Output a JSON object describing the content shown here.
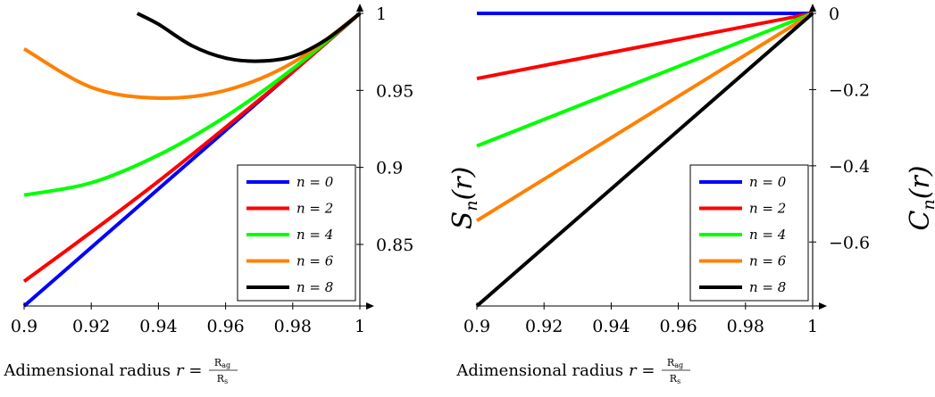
{
  "chart_data": [
    {
      "type": "line",
      "panel": "left",
      "x_ticks": [
        "0.9",
        "0.92",
        "0.94",
        "0.96",
        "0.98",
        "1"
      ],
      "y_ticks": [
        "0.85",
        "0.9",
        "0.95",
        "1"
      ],
      "xlim": [
        0.9,
        1.0
      ],
      "ylim": [
        0.81,
        1.0
      ],
      "y_axis_side": "right",
      "xlabel_text": "Adimensional radius",
      "xlabel_math": "r =",
      "xlabel_frac_num": "R",
      "xlabel_frac_num_sub": "ag",
      "xlabel_frac_den": "R",
      "xlabel_frac_den_sub": "s",
      "legend_position": "bottom-right",
      "series": [
        {
          "name": "n = 0",
          "color": "#0000ff",
          "x": [
            0.9,
            0.92,
            0.94,
            0.96,
            0.98,
            1.0
          ],
          "y": [
            0.81,
            0.848,
            0.886,
            0.924,
            0.962,
            1.0
          ]
        },
        {
          "name": "n = 2",
          "color": "#ff0000",
          "x": [
            0.9,
            0.92,
            0.94,
            0.96,
            0.98,
            1.0
          ],
          "y": [
            0.826,
            0.858,
            0.891,
            0.926,
            0.962,
            1.0
          ]
        },
        {
          "name": "n = 4",
          "color": "#00ff00",
          "x": [
            0.9,
            0.92,
            0.94,
            0.96,
            0.98,
            1.0
          ],
          "y": [
            0.882,
            0.89,
            0.908,
            0.933,
            0.964,
            1.0
          ]
        },
        {
          "name": "n = 6",
          "color": "#ff8000",
          "x": [
            0.9,
            0.92,
            0.94,
            0.96,
            0.98,
            1.0
          ],
          "y": [
            0.977,
            0.952,
            0.945,
            0.95,
            0.968,
            1.0
          ]
        },
        {
          "name": "n = 8",
          "color": "#000000",
          "x": [
            0.9337,
            0.94,
            0.95,
            0.96,
            0.97,
            0.98,
            0.99,
            1.0
          ],
          "y": [
            1.0,
            0.993,
            0.979,
            0.971,
            0.969,
            0.972,
            0.983,
            1.0
          ]
        }
      ]
    },
    {
      "type": "line",
      "panel": "right",
      "x_ticks": [
        "0.9",
        "0.92",
        "0.94",
        "0.96",
        "0.98",
        "1"
      ],
      "y_ticks": [
        "0",
        "−0.2",
        "−0.4",
        "−0.6"
      ],
      "y_tick_values": [
        0,
        -0.2,
        -0.4,
        -0.6
      ],
      "xlim": [
        0.9,
        1.0
      ],
      "ylim": [
        -0.768,
        0.0
      ],
      "y_axis_side": "right",
      "left_title": "S",
      "left_title_sub": "n",
      "left_title_arg": "(r)",
      "right_title": "C",
      "right_title_sub": "n",
      "right_title_arg": "(r)",
      "xlabel_text": "Adimensional radius",
      "xlabel_math": "r =",
      "xlabel_frac_num": "R",
      "xlabel_frac_num_sub": "ag",
      "xlabel_frac_den": "R",
      "xlabel_frac_den_sub": "s",
      "legend_position": "bottom-right",
      "series": [
        {
          "name": "n = 0",
          "color": "#0000ff",
          "x": [
            0.9,
            1.0
          ],
          "y": [
            0.0,
            0.0
          ]
        },
        {
          "name": "n = 2",
          "color": "#ff0000",
          "x": [
            0.9,
            1.0
          ],
          "y": [
            -0.171,
            0.0
          ]
        },
        {
          "name": "n = 4",
          "color": "#00ff00",
          "x": [
            0.9,
            1.0
          ],
          "y": [
            -0.348,
            0.0
          ]
        },
        {
          "name": "n = 6",
          "color": "#ff8000",
          "x": [
            0.9,
            1.0
          ],
          "y": [
            -0.544,
            0.0
          ]
        },
        {
          "name": "n = 8",
          "color": "#000000",
          "x": [
            0.9,
            1.0
          ],
          "y": [
            -0.768,
            0.0
          ]
        }
      ]
    }
  ]
}
